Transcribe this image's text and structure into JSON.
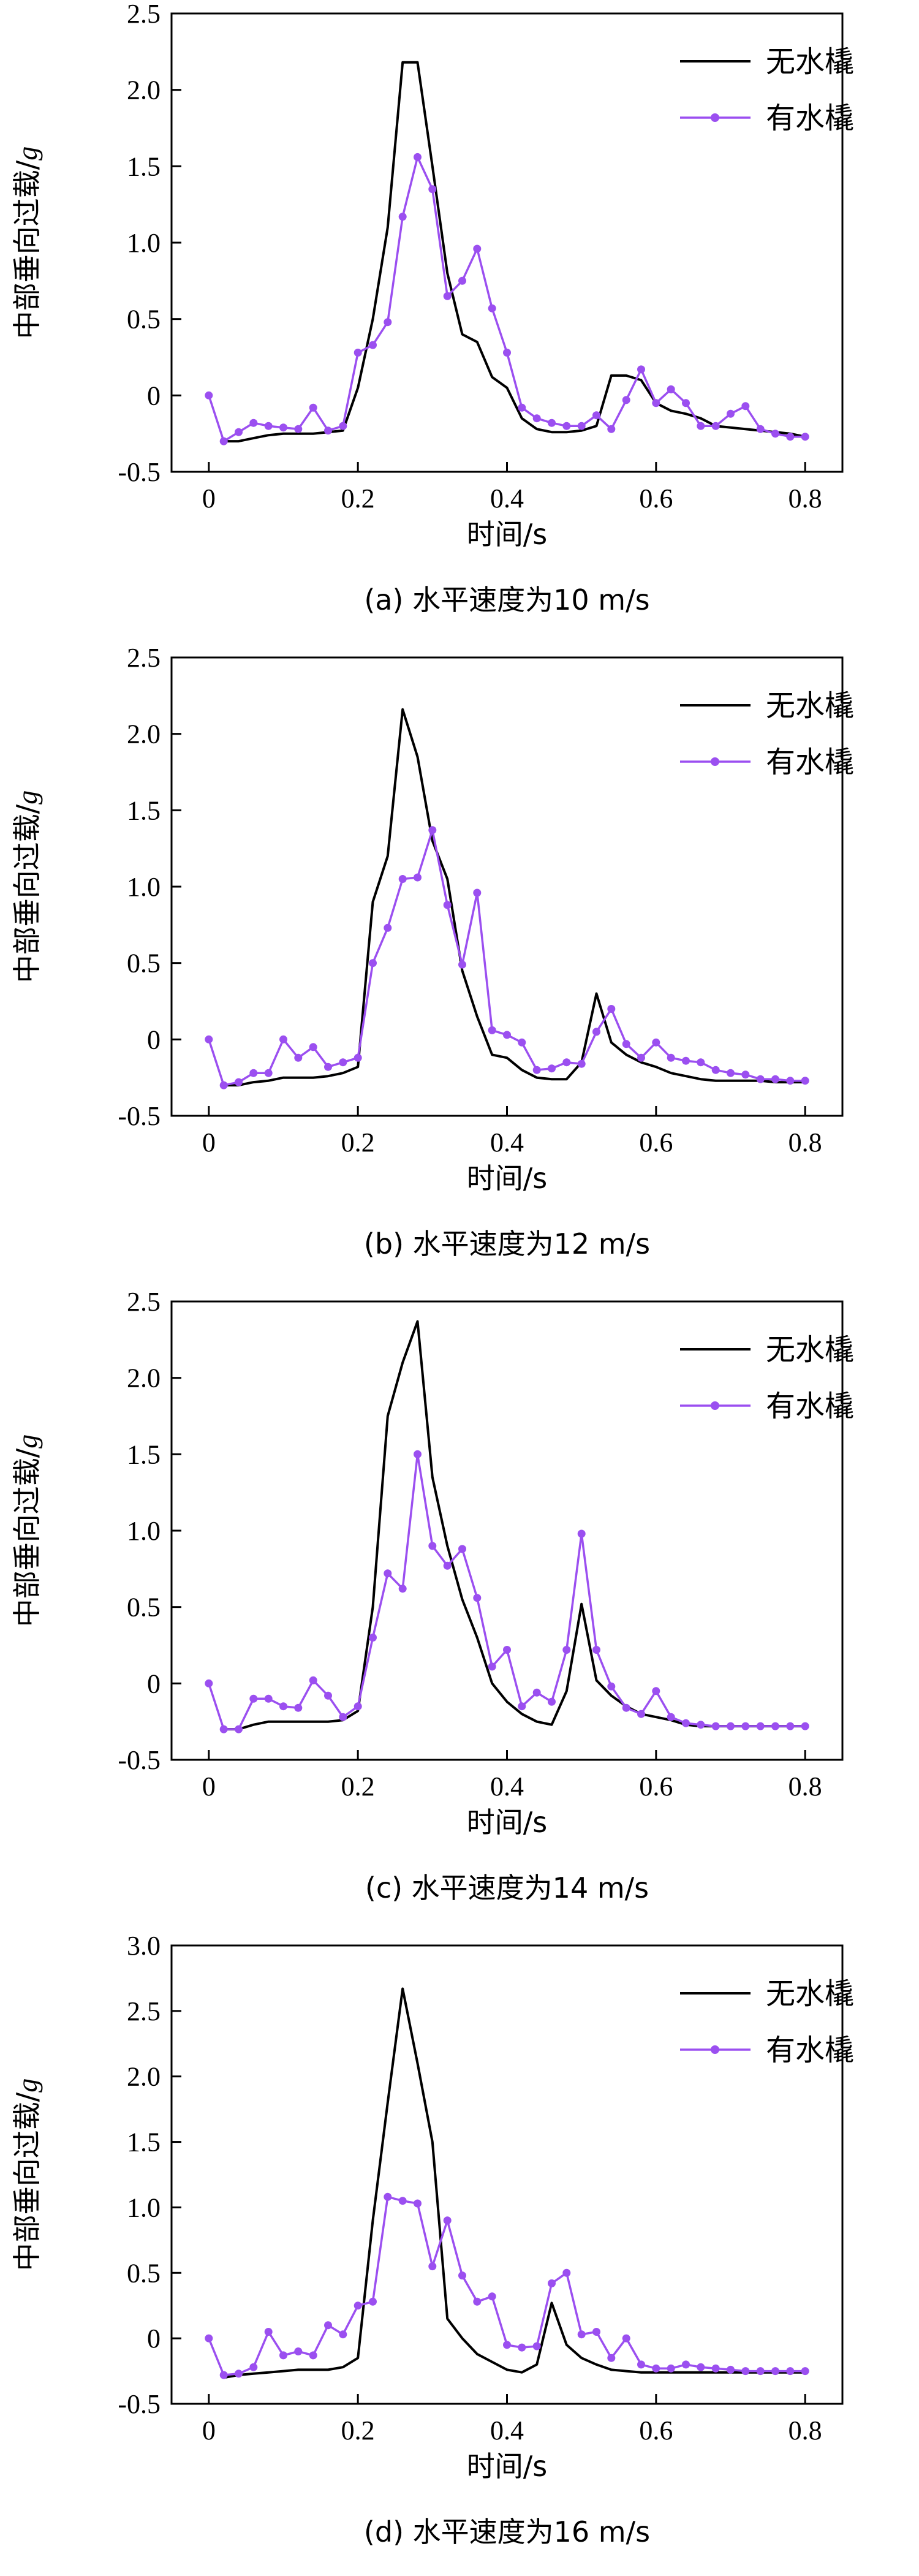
{
  "chart_data": [
    {
      "type": "line",
      "caption": "(a) 水平速度为10 m/s",
      "xlabel": "时间/s",
      "ylabel_prefix": "中部垂向过载/",
      "ylabel_unit": "g",
      "xlim": [
        -0.05,
        0.85
      ],
      "ylim": [
        -0.5,
        2.5
      ],
      "xticks": [
        "0",
        "0.2",
        "0.4",
        "0.6",
        "0.8"
      ],
      "xtick_values": [
        0,
        0.2,
        0.4,
        0.6,
        0.8
      ],
      "yticks": [
        "-0.5",
        "0",
        "0.5",
        "1.0",
        "1.5",
        "2.0",
        "2.5"
      ],
      "ytick_values": [
        -0.5,
        0,
        0.5,
        1.0,
        1.5,
        2.0,
        2.5
      ],
      "legend_position": "top-right",
      "series": [
        {
          "name": "无水橇",
          "color": "#000000",
          "marker": "none",
          "x": [
            0.02,
            0.04,
            0.06,
            0.08,
            0.1,
            0.12,
            0.14,
            0.16,
            0.18,
            0.2,
            0.22,
            0.24,
            0.26,
            0.28,
            0.3,
            0.32,
            0.34,
            0.36,
            0.38,
            0.4,
            0.42,
            0.44,
            0.46,
            0.48,
            0.5,
            0.52,
            0.54,
            0.56,
            0.58,
            0.6,
            0.62,
            0.64,
            0.66,
            0.68,
            0.7,
            0.72,
            0.74,
            0.76,
            0.78,
            0.8
          ],
          "y": [
            -0.3,
            -0.3,
            -0.28,
            -0.26,
            -0.25,
            -0.25,
            -0.25,
            -0.24,
            -0.23,
            0.05,
            0.5,
            1.1,
            2.18,
            2.18,
            1.5,
            0.8,
            0.4,
            0.35,
            0.12,
            0.05,
            -0.15,
            -0.22,
            -0.24,
            -0.24,
            -0.23,
            -0.2,
            0.13,
            0.13,
            0.1,
            -0.05,
            -0.1,
            -0.12,
            -0.15,
            -0.2,
            -0.21,
            -0.22,
            -0.23,
            -0.24,
            -0.25,
            -0.27
          ]
        },
        {
          "name": "有水橇",
          "color": "#9b4ff0",
          "marker": "circle",
          "x": [
            0.0,
            0.02,
            0.04,
            0.06,
            0.08,
            0.1,
            0.12,
            0.14,
            0.16,
            0.18,
            0.2,
            0.22,
            0.24,
            0.26,
            0.28,
            0.3,
            0.32,
            0.34,
            0.36,
            0.38,
            0.4,
            0.42,
            0.44,
            0.46,
            0.48,
            0.5,
            0.52,
            0.54,
            0.56,
            0.58,
            0.6,
            0.62,
            0.64,
            0.66,
            0.68,
            0.7,
            0.72,
            0.74,
            0.76,
            0.78,
            0.8
          ],
          "y": [
            0.0,
            -0.3,
            -0.24,
            -0.18,
            -0.2,
            -0.21,
            -0.22,
            -0.08,
            -0.23,
            -0.2,
            0.28,
            0.33,
            0.48,
            1.17,
            1.56,
            1.35,
            0.65,
            0.75,
            0.96,
            0.57,
            0.28,
            -0.08,
            -0.15,
            -0.18,
            -0.2,
            -0.2,
            -0.13,
            -0.22,
            -0.03,
            0.17,
            -0.05,
            0.04,
            -0.05,
            -0.2,
            -0.2,
            -0.12,
            -0.07,
            -0.22,
            -0.25,
            -0.27,
            -0.27
          ]
        }
      ]
    },
    {
      "type": "line",
      "caption": "(b) 水平速度为12 m/s",
      "xlabel": "时间/s",
      "ylabel_prefix": "中部垂向过载/",
      "ylabel_unit": "g",
      "xlim": [
        -0.05,
        0.85
      ],
      "ylim": [
        -0.5,
        2.5
      ],
      "xticks": [
        "0",
        "0.2",
        "0.4",
        "0.6",
        "0.8"
      ],
      "xtick_values": [
        0,
        0.2,
        0.4,
        0.6,
        0.8
      ],
      "yticks": [
        "-0.5",
        "0",
        "0.5",
        "1.0",
        "1.5",
        "2.0",
        "2.5"
      ],
      "ytick_values": [
        -0.5,
        0,
        0.5,
        1.0,
        1.5,
        2.0,
        2.5
      ],
      "legend_position": "top-right",
      "series": [
        {
          "name": "无水橇",
          "color": "#000000",
          "marker": "none",
          "x": [
            0.02,
            0.04,
            0.06,
            0.08,
            0.1,
            0.12,
            0.14,
            0.16,
            0.18,
            0.2,
            0.22,
            0.24,
            0.26,
            0.28,
            0.3,
            0.32,
            0.34,
            0.36,
            0.38,
            0.4,
            0.42,
            0.44,
            0.46,
            0.48,
            0.5,
            0.52,
            0.54,
            0.56,
            0.58,
            0.6,
            0.62,
            0.64,
            0.66,
            0.68,
            0.7,
            0.72,
            0.74,
            0.76,
            0.78,
            0.8
          ],
          "y": [
            -0.3,
            -0.3,
            -0.28,
            -0.27,
            -0.25,
            -0.25,
            -0.25,
            -0.24,
            -0.22,
            -0.18,
            0.9,
            1.2,
            2.16,
            1.85,
            1.3,
            1.05,
            0.45,
            0.15,
            -0.1,
            -0.12,
            -0.2,
            -0.25,
            -0.26,
            -0.26,
            -0.15,
            0.3,
            -0.02,
            -0.1,
            -0.15,
            -0.18,
            -0.22,
            -0.24,
            -0.26,
            -0.27,
            -0.27,
            -0.27,
            -0.27,
            -0.28,
            -0.28,
            -0.28
          ]
        },
        {
          "name": "有水橇",
          "color": "#9b4ff0",
          "marker": "circle",
          "x": [
            0.0,
            0.02,
            0.04,
            0.06,
            0.08,
            0.1,
            0.12,
            0.14,
            0.16,
            0.18,
            0.2,
            0.22,
            0.24,
            0.26,
            0.28,
            0.3,
            0.32,
            0.34,
            0.36,
            0.38,
            0.4,
            0.42,
            0.44,
            0.46,
            0.48,
            0.5,
            0.52,
            0.54,
            0.56,
            0.58,
            0.6,
            0.62,
            0.64,
            0.66,
            0.68,
            0.7,
            0.72,
            0.74,
            0.76,
            0.78,
            0.8
          ],
          "y": [
            0.0,
            -0.3,
            -0.28,
            -0.22,
            -0.22,
            0.0,
            -0.12,
            -0.05,
            -0.18,
            -0.15,
            -0.12,
            0.5,
            0.73,
            1.05,
            1.06,
            1.37,
            0.88,
            0.49,
            0.96,
            0.06,
            0.03,
            -0.02,
            -0.2,
            -0.19,
            -0.15,
            -0.16,
            0.05,
            0.2,
            -0.03,
            -0.12,
            -0.02,
            -0.12,
            -0.14,
            -0.15,
            -0.2,
            -0.22,
            -0.23,
            -0.26,
            -0.26,
            -0.27,
            -0.27
          ]
        }
      ]
    },
    {
      "type": "line",
      "caption": "(c) 水平速度为14 m/s",
      "xlabel": "时间/s",
      "ylabel_prefix": "中部垂向过载/",
      "ylabel_unit": "g",
      "xlim": [
        -0.05,
        0.85
      ],
      "ylim": [
        -0.5,
        2.5
      ],
      "xticks": [
        "0",
        "0.2",
        "0.4",
        "0.6",
        "0.8"
      ],
      "xtick_values": [
        0,
        0.2,
        0.4,
        0.6,
        0.8
      ],
      "yticks": [
        "-0.5",
        "0",
        "0.5",
        "1.0",
        "1.5",
        "2.0",
        "2.5"
      ],
      "ytick_values": [
        -0.5,
        0,
        0.5,
        1.0,
        1.5,
        2.0,
        2.5
      ],
      "legend_position": "top-right",
      "series": [
        {
          "name": "无水橇",
          "color": "#000000",
          "marker": "none",
          "x": [
            0.02,
            0.04,
            0.06,
            0.08,
            0.1,
            0.12,
            0.14,
            0.16,
            0.18,
            0.2,
            0.22,
            0.24,
            0.26,
            0.28,
            0.3,
            0.32,
            0.34,
            0.36,
            0.38,
            0.4,
            0.42,
            0.44,
            0.46,
            0.48,
            0.5,
            0.52,
            0.54,
            0.56,
            0.58,
            0.6,
            0.62,
            0.64,
            0.66,
            0.68,
            0.7,
            0.72,
            0.74,
            0.76,
            0.78,
            0.8
          ],
          "y": [
            -0.3,
            -0.3,
            -0.27,
            -0.25,
            -0.25,
            -0.25,
            -0.25,
            -0.25,
            -0.24,
            -0.18,
            0.5,
            1.75,
            2.1,
            2.37,
            1.35,
            0.9,
            0.55,
            0.3,
            0.0,
            -0.12,
            -0.2,
            -0.25,
            -0.27,
            -0.05,
            0.52,
            0.02,
            -0.08,
            -0.15,
            -0.2,
            -0.22,
            -0.24,
            -0.27,
            -0.28,
            -0.28,
            -0.28,
            -0.28,
            -0.28,
            -0.28,
            -0.28,
            -0.28
          ]
        },
        {
          "name": "有水橇",
          "color": "#9b4ff0",
          "marker": "circle",
          "x": [
            0.0,
            0.02,
            0.04,
            0.06,
            0.08,
            0.1,
            0.12,
            0.14,
            0.16,
            0.18,
            0.2,
            0.22,
            0.24,
            0.26,
            0.28,
            0.3,
            0.32,
            0.34,
            0.36,
            0.38,
            0.4,
            0.42,
            0.44,
            0.46,
            0.48,
            0.5,
            0.52,
            0.54,
            0.56,
            0.58,
            0.6,
            0.62,
            0.64,
            0.66,
            0.68,
            0.7,
            0.72,
            0.74,
            0.76,
            0.78,
            0.8
          ],
          "y": [
            0.0,
            -0.3,
            -0.3,
            -0.1,
            -0.1,
            -0.15,
            -0.16,
            0.02,
            -0.08,
            -0.22,
            -0.15,
            0.3,
            0.72,
            0.62,
            1.5,
            0.9,
            0.77,
            0.88,
            0.56,
            0.11,
            0.22,
            -0.15,
            -0.06,
            -0.12,
            0.22,
            0.98,
            0.22,
            -0.02,
            -0.16,
            -0.2,
            -0.05,
            -0.22,
            -0.26,
            -0.27,
            -0.28,
            -0.28,
            -0.28,
            -0.28,
            -0.28,
            -0.28,
            -0.28
          ]
        }
      ]
    },
    {
      "type": "line",
      "caption": "(d) 水平速度为16 m/s",
      "xlabel": "时间/s",
      "ylabel_prefix": "中部垂向过载/",
      "ylabel_unit": "g",
      "xlim": [
        -0.05,
        0.85
      ],
      "ylim": [
        -0.5,
        3.0
      ],
      "xticks": [
        "0",
        "0.2",
        "0.4",
        "0.6",
        "0.8"
      ],
      "xtick_values": [
        0,
        0.2,
        0.4,
        0.6,
        0.8
      ],
      "yticks": [
        "-0.5",
        "0",
        "0.5",
        "1.0",
        "1.5",
        "2.0",
        "2.5",
        "3.0"
      ],
      "ytick_values": [
        -0.5,
        0,
        0.5,
        1.0,
        1.5,
        2.0,
        2.5,
        3.0
      ],
      "legend_position": "top-right",
      "series": [
        {
          "name": "无水橇",
          "color": "#000000",
          "marker": "none",
          "x": [
            0.02,
            0.04,
            0.06,
            0.08,
            0.1,
            0.12,
            0.14,
            0.16,
            0.18,
            0.2,
            0.22,
            0.24,
            0.26,
            0.28,
            0.3,
            0.32,
            0.34,
            0.36,
            0.38,
            0.4,
            0.42,
            0.44,
            0.46,
            0.48,
            0.5,
            0.52,
            0.54,
            0.56,
            0.58,
            0.6,
            0.62,
            0.64,
            0.66,
            0.68,
            0.7,
            0.72,
            0.74,
            0.76,
            0.78,
            0.8
          ],
          "y": [
            -0.3,
            -0.28,
            -0.27,
            -0.26,
            -0.25,
            -0.24,
            -0.24,
            -0.24,
            -0.22,
            -0.15,
            0.9,
            1.8,
            2.67,
            2.1,
            1.5,
            0.15,
            0.0,
            -0.12,
            -0.18,
            -0.24,
            -0.26,
            -0.2,
            0.27,
            -0.05,
            -0.15,
            -0.2,
            -0.24,
            -0.25,
            -0.26,
            -0.26,
            -0.26,
            -0.26,
            -0.26,
            -0.26,
            -0.26,
            -0.26,
            -0.26,
            -0.26,
            -0.26,
            -0.26
          ]
        },
        {
          "name": "有水橇",
          "color": "#9b4ff0",
          "marker": "circle",
          "x": [
            0.0,
            0.02,
            0.04,
            0.06,
            0.08,
            0.1,
            0.12,
            0.14,
            0.16,
            0.18,
            0.2,
            0.22,
            0.24,
            0.26,
            0.28,
            0.3,
            0.32,
            0.34,
            0.36,
            0.38,
            0.4,
            0.42,
            0.44,
            0.46,
            0.48,
            0.5,
            0.52,
            0.54,
            0.56,
            0.58,
            0.6,
            0.62,
            0.64,
            0.66,
            0.68,
            0.7,
            0.72,
            0.74,
            0.76,
            0.78,
            0.8
          ],
          "y": [
            0.0,
            -0.28,
            -0.27,
            -0.22,
            0.05,
            -0.13,
            -0.1,
            -0.13,
            0.1,
            0.03,
            0.25,
            0.28,
            1.08,
            1.05,
            1.03,
            0.55,
            0.9,
            0.48,
            0.28,
            0.32,
            -0.05,
            -0.07,
            -0.06,
            0.42,
            0.5,
            0.03,
            0.05,
            -0.15,
            0.0,
            -0.2,
            -0.23,
            -0.23,
            -0.2,
            -0.22,
            -0.23,
            -0.24,
            -0.25,
            -0.25,
            -0.25,
            -0.25,
            -0.25
          ]
        }
      ]
    }
  ]
}
